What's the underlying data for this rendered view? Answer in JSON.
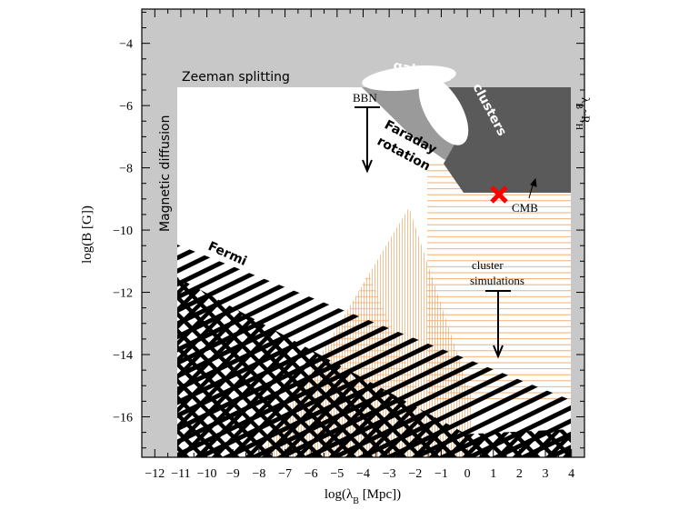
{
  "chart_data": {
    "type": "area",
    "xlabel": "log(λ_B [Mpc])",
    "ylabel": "log(B [G])",
    "xlim": [
      -12.5,
      4.5
    ],
    "ylim": [
      -17.3,
      -2.9
    ],
    "x_ticks": [
      -12,
      -11,
      -10,
      -9,
      -8,
      -7,
      -6,
      -5,
      -4,
      -3,
      -2,
      -1,
      0,
      1,
      2,
      3,
      4
    ],
    "x_tick_labels": [
      "−12",
      "−11",
      "−10",
      "−9",
      "−8",
      "−7",
      "−6",
      "−5",
      "−4",
      "−3",
      "−2",
      "−1",
      "0",
      "1",
      "2",
      "3",
      "4"
    ],
    "y_ticks": [
      -4,
      -6,
      -8,
      -10,
      -12,
      -14,
      -16
    ],
    "y_tick_labels": [
      "−4",
      "−6",
      "−8",
      "−10",
      "−12",
      "−14",
      "−16"
    ],
    "regions": [
      {
        "name": "Zeeman splitting",
        "label": "Zeeman splitting",
        "y_lower": -5.5
      },
      {
        "name": "Magnetic diffusion",
        "label": "Magnetic diffusion",
        "x_upper": -11.2
      },
      {
        "name": "horizon",
        "label": "λ_B~R_H",
        "x_lower": 3.7
      },
      {
        "name": "Faraday rotation",
        "label": "Faraday rotation"
      },
      {
        "name": "galaxies",
        "label": "galaxies"
      },
      {
        "name": "clusters",
        "label": "clusters"
      },
      {
        "name": "Fermi",
        "label": "Fermi",
        "boundary": [
          [
            -11.2,
            -10.5
          ],
          [
            3.7,
            -15.5
          ]
        ]
      },
      {
        "name": "CMB",
        "label": "CMB",
        "y_upper": -8.9
      }
    ],
    "annotations": [
      {
        "label": "BBN",
        "x": -4.0,
        "y": -6.3,
        "type": "upper-limit-arrow",
        "y_to": -8.3
      },
      {
        "label": "cluster simulations",
        "lines": [
          "cluster",
          "simulations"
        ],
        "x": 0.9,
        "y": -12.0,
        "type": "upper-limit-arrow",
        "y_to": -14.1
      },
      {
        "label": "CMB",
        "x": 2.1,
        "y": -9.5
      }
    ],
    "markers": [
      {
        "symbol": "x",
        "color": "#ff0000",
        "x": 1.0,
        "y": -9.0
      }
    ],
    "colors": {
      "excluded": "#c8c8c8",
      "faraday": "#9a9a9a",
      "clusters_dark": "#5a5a5a",
      "simulations": "#f4a460",
      "fermi": "#000000"
    }
  }
}
